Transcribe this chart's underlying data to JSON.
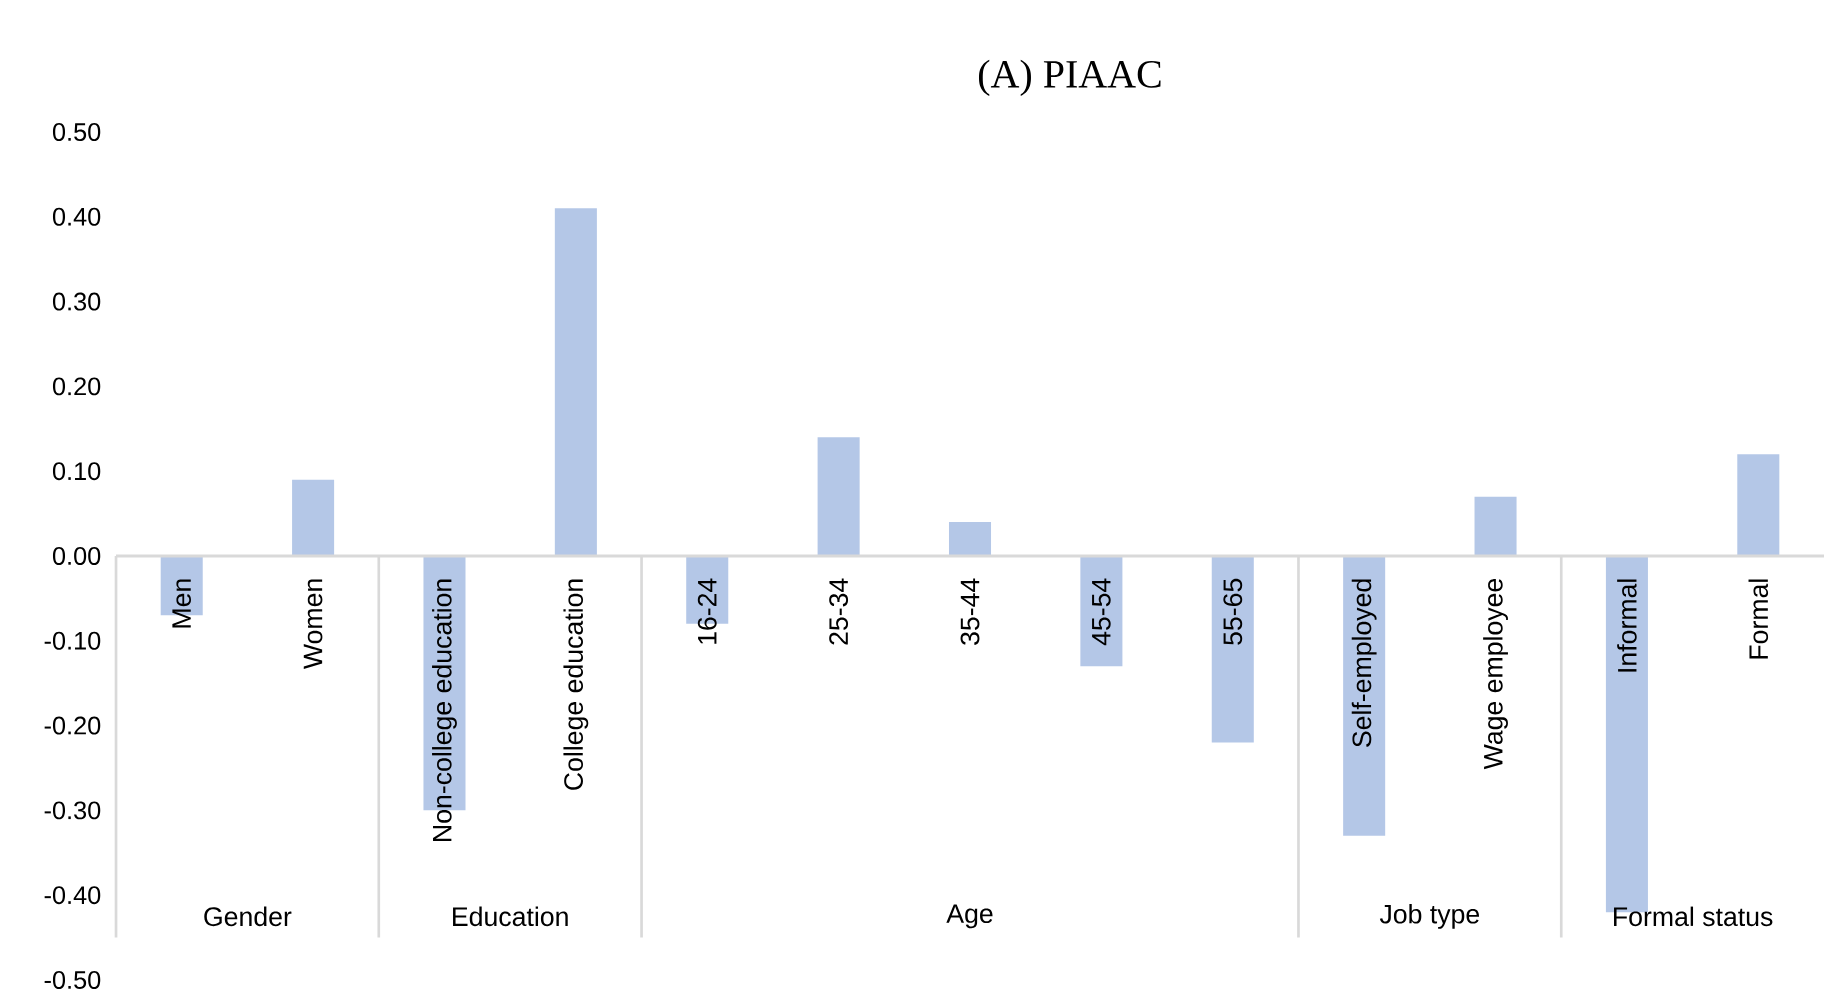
{
  "chart_data": {
    "type": "bar",
    "title": "(A) PIAAC",
    "categories": [
      "Men",
      "Women",
      "Non-college education",
      "College education",
      "16-24",
      "25-34",
      "35-44",
      "45-54",
      "55-65",
      "Self-employed",
      "Wage employee",
      "Informal",
      "Formal"
    ],
    "values": [
      -0.07,
      0.09,
      -0.3,
      0.41,
      -0.08,
      0.14,
      0.04,
      -0.13,
      -0.22,
      -0.33,
      0.07,
      -0.42,
      0.12
    ],
    "color": "#b4c7e7",
    "ylim": [
      -0.5,
      0.5
    ],
    "yticks": [
      {
        "value": -0.5,
        "label": "-0.50"
      },
      {
        "value": -0.4,
        "label": "-0.40"
      },
      {
        "value": -0.3,
        "label": "-0.30"
      },
      {
        "value": -0.2,
        "label": "-0.20"
      },
      {
        "value": -0.1,
        "label": "-0.10"
      },
      {
        "value": 0,
        "label": "0.00"
      },
      {
        "value": 0.1,
        "label": "0.10"
      },
      {
        "value": 0.2,
        "label": "0.20"
      },
      {
        "value": 0.3,
        "label": "0.30"
      },
      {
        "value": 0.4,
        "label": "0.40"
      },
      {
        "value": 0.5,
        "label": "0.50"
      }
    ],
    "annotations": [
      "Gender",
      "Education",
      "Age",
      "Job type",
      "Formal status"
    ],
    "grid": false
  }
}
